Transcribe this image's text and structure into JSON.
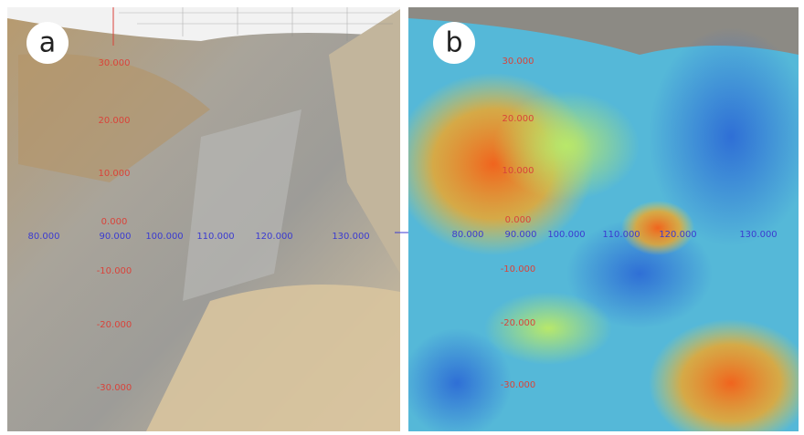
{
  "panels": [
    {
      "label": "a",
      "y_labels": [
        "30.000",
        "20.000",
        "10.000",
        "0.000",
        "-10.000",
        "-20.000",
        "-30.000"
      ],
      "x_labels": [
        "80.000",
        "90.000",
        "100.000",
        "110.000",
        "120.000",
        "130.000"
      ]
    },
    {
      "label": "b",
      "y_labels": [
        "30.000",
        "20.000",
        "10.000",
        "0.000",
        "-10.000",
        "-20.000",
        "-30.000"
      ],
      "x_labels": [
        "80.000",
        "90.000",
        "100.000",
        "110.000",
        "120.000",
        "130.000"
      ]
    }
  ]
}
